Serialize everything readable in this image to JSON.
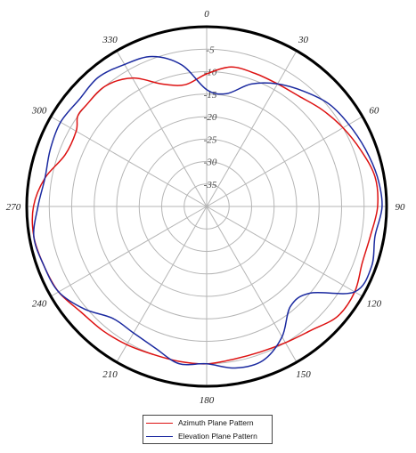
{
  "chart_data": {
    "type": "polar",
    "angle_labels": [
      "0",
      "30",
      "60",
      "90",
      "120",
      "150",
      "180",
      "210",
      "240",
      "270",
      "300",
      "330"
    ],
    "radial_labels": [
      "-5",
      "-10",
      "-15",
      "-20",
      "-25",
      "-30",
      "-35"
    ],
    "rlim": [
      -40,
      0
    ],
    "angle_direction": "clockwise",
    "zero_at": "top",
    "grid": true,
    "legend_position": "bottom-center",
    "series": [
      {
        "name": "Azimuth Plane Pattern",
        "color": "#dd1111",
        "angles": [
          0,
          10,
          20,
          30,
          40,
          50,
          60,
          70,
          80,
          90,
          100,
          110,
          120,
          130,
          140,
          150,
          160,
          170,
          180,
          190,
          200,
          210,
          220,
          230,
          240,
          250,
          260,
          270,
          280,
          290,
          300,
          305,
          310,
          320,
          330,
          340,
          350,
          360
        ],
        "values": [
          -10.5,
          -8.5,
          -8.5,
          -8.5,
          -8,
          -6.5,
          -5,
          -3.5,
          -2,
          -2,
          -3,
          -3.2,
          -2,
          -2,
          -4,
          -5,
          -5.5,
          -5.5,
          -5,
          -5,
          -5,
          -4.5,
          -4,
          -3.5,
          -2,
          -1.5,
          -1,
          -1.5,
          -3.5,
          -6.5,
          -6.5,
          -5,
          -5,
          -5,
          -7,
          -11,
          -12.5,
          -10.5
        ]
      },
      {
        "name": "Elevation Plane Pattern",
        "color": "#1b2aa0",
        "angles": [
          0,
          10,
          20,
          30,
          40,
          50,
          60,
          70,
          80,
          90,
          100,
          110,
          120,
          130,
          140,
          150,
          160,
          170,
          180,
          190,
          200,
          210,
          220,
          230,
          240,
          250,
          260,
          270,
          280,
          290,
          300,
          310,
          320,
          330,
          340,
          350,
          360
        ],
        "values": [
          -14,
          -14.5,
          -11,
          -8.5,
          -6.5,
          -4.5,
          -3.5,
          -2.5,
          -1.5,
          -1,
          -2,
          -1,
          -2,
          -10,
          -11,
          -6.5,
          -3.5,
          -3.5,
          -5,
          -4.5,
          -6.5,
          -7.5,
          -7.5,
          -4.5,
          -2,
          -1.5,
          -1,
          -2.5,
          -3.5,
          -3,
          -2.5,
          -3,
          -2.5,
          -3.5,
          -4.5,
          -8,
          -14
        ]
      }
    ]
  }
}
